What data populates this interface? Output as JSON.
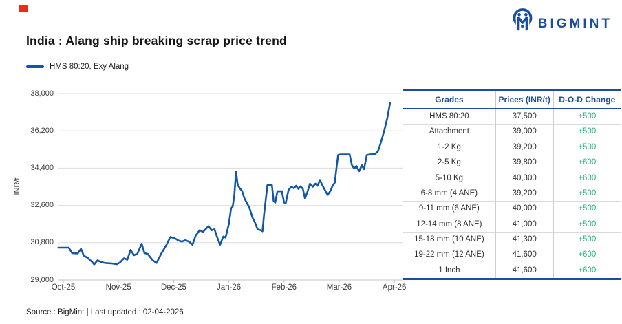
{
  "logo": {
    "text": "BIGMINT"
  },
  "red_marker": {
    "present": true
  },
  "title": "India : Alang ship breaking scrap price trend",
  "legend": {
    "label": "HMS 80:20, Exy Alang"
  },
  "chart_data": {
    "type": "line",
    "title": "India : Alang ship breaking scrap price trend",
    "xlabel": "",
    "ylabel": "INR/t",
    "ylim": [
      29000,
      38000
    ],
    "grid": "horizontal",
    "legend_position": "top-left",
    "y_ticks": [
      {
        "label": "29,000",
        "value": 29000
      },
      {
        "label": "30,800",
        "value": 30800
      },
      {
        "label": "32,600",
        "value": 32600
      },
      {
        "label": "34,400",
        "value": 34400
      },
      {
        "label": "36,200",
        "value": 36200
      },
      {
        "label": "38,000",
        "value": 38000
      }
    ],
    "x_ticks": [
      {
        "label": "Oct-25",
        "t": 0
      },
      {
        "label": "Nov-25",
        "t": 1
      },
      {
        "label": "Dec-25",
        "t": 2
      },
      {
        "label": "Jan-26",
        "t": 3
      },
      {
        "label": "Feb-26",
        "t": 4
      },
      {
        "label": "Mar-26",
        "t": 5
      },
      {
        "label": "Apr-26",
        "t": 6
      }
    ],
    "series": [
      {
        "name": "HMS 80:20, Exy Alang",
        "color": "#1257a6",
        "last_value": 37500,
        "points": [
          [
            -0.09,
            30560
          ],
          [
            0.0,
            30560
          ],
          [
            0.1,
            30560
          ],
          [
            0.16,
            30300
          ],
          [
            0.26,
            30280
          ],
          [
            0.32,
            30500
          ],
          [
            0.37,
            30180
          ],
          [
            0.45,
            30050
          ],
          [
            0.53,
            29850
          ],
          [
            0.56,
            29750
          ],
          [
            0.62,
            29950
          ],
          [
            0.68,
            29870
          ],
          [
            0.75,
            29820
          ],
          [
            0.87,
            29800
          ],
          [
            0.97,
            29760
          ],
          [
            1.03,
            29850
          ],
          [
            1.1,
            30050
          ],
          [
            1.16,
            29980
          ],
          [
            1.22,
            30450
          ],
          [
            1.28,
            30200
          ],
          [
            1.34,
            30260
          ],
          [
            1.42,
            30750
          ],
          [
            1.47,
            30300
          ],
          [
            1.53,
            30260
          ],
          [
            1.62,
            29950
          ],
          [
            1.69,
            29820
          ],
          [
            1.78,
            30300
          ],
          [
            1.87,
            30700
          ],
          [
            1.94,
            31080
          ],
          [
            2.03,
            31000
          ],
          [
            2.09,
            30900
          ],
          [
            2.15,
            30850
          ],
          [
            2.21,
            30920
          ],
          [
            2.28,
            30850
          ],
          [
            2.34,
            30700
          ],
          [
            2.4,
            31150
          ],
          [
            2.47,
            31400
          ],
          [
            2.53,
            31320
          ],
          [
            2.59,
            31480
          ],
          [
            2.63,
            31600
          ],
          [
            2.69,
            31400
          ],
          [
            2.74,
            31450
          ],
          [
            2.79,
            31050
          ],
          [
            2.84,
            30700
          ],
          [
            2.9,
            31100
          ],
          [
            2.94,
            31050
          ],
          [
            3.0,
            31700
          ],
          [
            3.04,
            32450
          ],
          [
            3.07,
            32550
          ],
          [
            3.1,
            33100
          ],
          [
            3.13,
            34230
          ],
          [
            3.16,
            33600
          ],
          [
            3.2,
            33420
          ],
          [
            3.24,
            33300
          ],
          [
            3.28,
            32950
          ],
          [
            3.33,
            32700
          ],
          [
            3.37,
            32500
          ],
          [
            3.43,
            32000
          ],
          [
            3.47,
            31800
          ],
          [
            3.52,
            31450
          ],
          [
            3.58,
            31400
          ],
          [
            3.61,
            31350
          ],
          [
            3.64,
            32200
          ],
          [
            3.67,
            32900
          ],
          [
            3.7,
            33580
          ],
          [
            3.78,
            33580
          ],
          [
            3.81,
            32820
          ],
          [
            3.84,
            32740
          ],
          [
            3.88,
            33280
          ],
          [
            3.96,
            33280
          ],
          [
            4.0,
            32750
          ],
          [
            4.03,
            32700
          ],
          [
            4.08,
            33330
          ],
          [
            4.13,
            33500
          ],
          [
            4.18,
            33430
          ],
          [
            4.22,
            33550
          ],
          [
            4.26,
            33400
          ],
          [
            4.3,
            33520
          ],
          [
            4.34,
            33400
          ],
          [
            4.38,
            32930
          ],
          [
            4.43,
            33300
          ],
          [
            4.47,
            33650
          ],
          [
            4.52,
            33500
          ],
          [
            4.57,
            33650
          ],
          [
            4.61,
            33550
          ],
          [
            4.65,
            33830
          ],
          [
            4.7,
            33550
          ],
          [
            4.75,
            33300
          ],
          [
            4.79,
            33100
          ],
          [
            4.84,
            33300
          ],
          [
            4.88,
            33550
          ],
          [
            4.92,
            33700
          ],
          [
            4.95,
            34400
          ],
          [
            4.98,
            35030
          ],
          [
            5.02,
            35060
          ],
          [
            5.19,
            35060
          ],
          [
            5.23,
            34550
          ],
          [
            5.27,
            34380
          ],
          [
            5.31,
            34500
          ],
          [
            5.36,
            34250
          ],
          [
            5.41,
            34540
          ],
          [
            5.45,
            34350
          ],
          [
            5.5,
            35030
          ],
          [
            5.56,
            35060
          ],
          [
            5.65,
            35080
          ],
          [
            5.7,
            35200
          ],
          [
            5.75,
            35600
          ],
          [
            5.81,
            36150
          ],
          [
            5.87,
            36800
          ],
          [
            5.92,
            37530
          ]
        ]
      }
    ]
  },
  "table": {
    "headers": [
      "Grades",
      "Prices (INR/t)",
      "D-O-D Change"
    ],
    "rows": [
      [
        "HMS 80:20",
        "37,500",
        "+500"
      ],
      [
        "Attachment",
        "39,000",
        "+500"
      ],
      [
        "1-2 Kg",
        "39,200",
        "+500"
      ],
      [
        "2-5 Kg",
        "39,800",
        "+600"
      ],
      [
        "5-10 Kg",
        "40,300",
        "+600"
      ],
      [
        "6-8 mm (4 ANE)",
        "39,200",
        "+500"
      ],
      [
        "9-11 mm (6 ANE)",
        "40,000",
        "+500"
      ],
      [
        "12-14 mm (8 ANE)",
        "41,000",
        "+500"
      ],
      [
        "15-18 mm (10 ANE)",
        "41,300",
        "+500"
      ],
      [
        "19-22 mm (12 ANE)",
        "41,600",
        "+600"
      ],
      [
        "1 Inch",
        "41,600",
        "+600"
      ]
    ]
  },
  "footer": {
    "source": "Source : BigMint | Last updated : 02-04-2026"
  },
  "colors": {
    "brand_blue": "#1b4f9e",
    "line_blue": "#1257a6",
    "positive_green": "#27b277",
    "gridline": "#dcdcdc",
    "axis_line": "#c4c4c4",
    "axis_text": "#3c3c3c",
    "red_marker": "#ee2a1e"
  }
}
